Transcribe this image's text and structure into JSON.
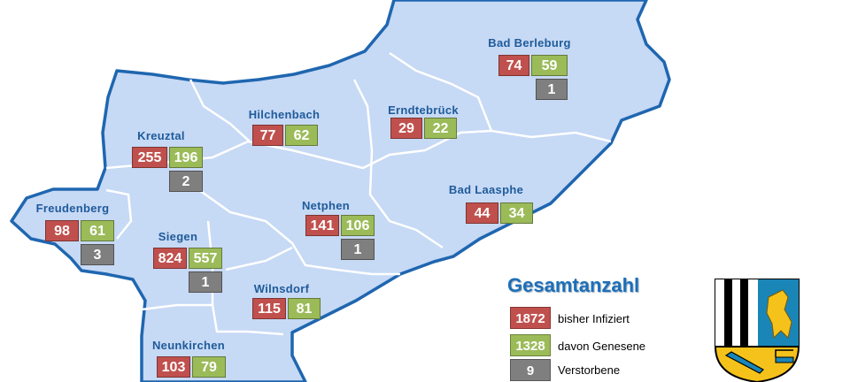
{
  "colors": {
    "infected": "#c0504d",
    "recovered": "#9bbb59",
    "deceased": "#7f7f7f",
    "map_fill": "#c6d9f5",
    "border": "#1f66b0",
    "label": "#1f5b9a"
  },
  "districts": [
    {
      "name": "Bad Berleburg",
      "infected": "74",
      "recovered": "59",
      "deceased": "1"
    },
    {
      "name": "Hilchenbach",
      "infected": "77",
      "recovered": "62",
      "deceased": null
    },
    {
      "name": "Erndtebrück",
      "infected": "29",
      "recovered": "22",
      "deceased": null
    },
    {
      "name": "Kreuztal",
      "infected": "255",
      "recovered": "196",
      "deceased": "2"
    },
    {
      "name": "Freudenberg",
      "infected": "98",
      "recovered": "61",
      "deceased": "3"
    },
    {
      "name": "Siegen",
      "infected": "824",
      "recovered": "557",
      "deceased": "1"
    },
    {
      "name": "Netphen",
      "infected": "141",
      "recovered": "106",
      "deceased": "1"
    },
    {
      "name": "Bad Laasphe",
      "infected": "44",
      "recovered": "34",
      "deceased": null
    },
    {
      "name": "Wilnsdorf",
      "infected": "115",
      "recovered": "81",
      "deceased": null
    },
    {
      "name": "Neunkirchen",
      "infected": "103",
      "recovered": "79",
      "deceased": null
    }
  ],
  "legend": {
    "title": "Gesamtanzahl",
    "items": [
      {
        "value": "1872",
        "label": "bisher Infiziert",
        "kind": "infected"
      },
      {
        "value": "1328",
        "label": "davon Genesene",
        "kind": "recovered"
      },
      {
        "value": "9",
        "label": "Verstorbene",
        "kind": "deceased"
      }
    ]
  },
  "coat_of_arms": {
    "icon": "coat-of-arms-icon"
  }
}
